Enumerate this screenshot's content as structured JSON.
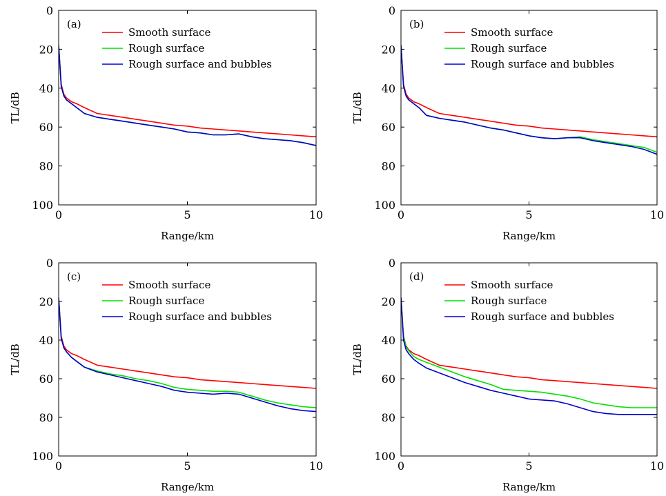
{
  "chart_data": [
    {
      "type": "line",
      "panel_label": "(a)",
      "xlabel": "Range/km",
      "ylabel": "TL/dB",
      "xlim": [
        0,
        10
      ],
      "ylim": [
        0,
        100
      ],
      "y_inverted": true,
      "xticks": [
        "0",
        "5",
        "10"
      ],
      "yticks": [
        "0",
        "20",
        "40",
        "60",
        "80",
        "100"
      ],
      "legend_position": "top-right",
      "x": [
        0,
        0.1,
        0.2,
        0.3,
        0.4,
        0.5,
        0.7,
        1.0,
        1.5,
        2.0,
        2.5,
        3.0,
        3.5,
        4.0,
        4.5,
        5.0,
        5.5,
        6.0,
        6.5,
        7.0,
        7.5,
        8.0,
        8.5,
        9.0,
        9.5,
        10.0
      ],
      "series": [
        {
          "name": "Smooth surface",
          "color": "#ff0000",
          "values": [
            18,
            38,
            43,
            45,
            46,
            47,
            48,
            50,
            53,
            54,
            55,
            56,
            57,
            58,
            59,
            59.5,
            60.5,
            61,
            61.5,
            62,
            62.5,
            63,
            63.5,
            64,
            64.5,
            65
          ]
        },
        {
          "name": "Rough surface",
          "color": "#00e000",
          "values": [
            18,
            39,
            44,
            46,
            47,
            48,
            50,
            53,
            55,
            56,
            57,
            58,
            59,
            60,
            61,
            62.5,
            63,
            64,
            64,
            63.5,
            65,
            66,
            66.5,
            67,
            68,
            69.5
          ]
        },
        {
          "name": "Rough surface and bubbles",
          "color": "#0000d0",
          "values": [
            18,
            39,
            44,
            46,
            47,
            48,
            50,
            53,
            55,
            56,
            57,
            58,
            59,
            60,
            61,
            62.5,
            63,
            64,
            64,
            63.5,
            65,
            66,
            66.5,
            67,
            68,
            69.5
          ]
        }
      ]
    },
    {
      "type": "line",
      "panel_label": "(b)",
      "xlabel": "Range/km",
      "ylabel": "TL/dB",
      "xlim": [
        0,
        10
      ],
      "ylim": [
        0,
        100
      ],
      "y_inverted": true,
      "xticks": [
        "0",
        "5",
        "10"
      ],
      "yticks": [
        "0",
        "20",
        "40",
        "60",
        "80",
        "100"
      ],
      "legend_position": "top-right",
      "x": [
        0,
        0.1,
        0.2,
        0.3,
        0.4,
        0.5,
        0.7,
        1.0,
        1.5,
        2.0,
        2.5,
        3.0,
        3.5,
        4.0,
        4.5,
        5.0,
        5.5,
        6.0,
        6.5,
        7.0,
        7.5,
        8.0,
        8.5,
        9.0,
        9.5,
        10.0
      ],
      "series": [
        {
          "name": "Smooth surface",
          "color": "#ff0000",
          "values": [
            18,
            38,
            43,
            45,
            46,
            47,
            48,
            50,
            53,
            54,
            55,
            56,
            57,
            58,
            59,
            59.5,
            60.5,
            61,
            61.5,
            62,
            62.5,
            63,
            63.5,
            64,
            64.5,
            65
          ]
        },
        {
          "name": "Rough surface",
          "color": "#00e000",
          "values": [
            18,
            39,
            44,
            46,
            47,
            48,
            50,
            54,
            55.5,
            56.5,
            57.5,
            59,
            60.5,
            61.5,
            63,
            64.5,
            65.5,
            66,
            65.5,
            65,
            66.5,
            67.5,
            68.5,
            69.5,
            70.5,
            73
          ]
        },
        {
          "name": "Rough surface and bubbles",
          "color": "#0000d0",
          "values": [
            18,
            39,
            44,
            46,
            47,
            48,
            50,
            54,
            55.5,
            56.5,
            57.5,
            59,
            60.5,
            61.5,
            63,
            64.5,
            65.5,
            66,
            65.5,
            65.5,
            67,
            68,
            69,
            70,
            71.5,
            74
          ]
        }
      ]
    },
    {
      "type": "line",
      "panel_label": "(c)",
      "xlabel": "Range/km",
      "ylabel": "TL/dB",
      "xlim": [
        0,
        10
      ],
      "ylim": [
        0,
        100
      ],
      "y_inverted": true,
      "xticks": [
        "0",
        "5",
        "10"
      ],
      "yticks": [
        "0",
        "20",
        "40",
        "60",
        "80",
        "100"
      ],
      "legend_position": "top-right",
      "x": [
        0,
        0.1,
        0.2,
        0.3,
        0.4,
        0.5,
        0.7,
        1.0,
        1.5,
        2.0,
        2.5,
        3.0,
        3.5,
        4.0,
        4.5,
        5.0,
        5.5,
        6.0,
        6.5,
        7.0,
        7.5,
        8.0,
        8.5,
        9.0,
        9.5,
        10.0
      ],
      "series": [
        {
          "name": "Smooth surface",
          "color": "#ff0000",
          "values": [
            18,
            38,
            43,
            45,
            46,
            47,
            48,
            50,
            53,
            54,
            55,
            56,
            57,
            58,
            59,
            59.5,
            60.5,
            61,
            61.5,
            62,
            62.5,
            63,
            63.5,
            64,
            64.5,
            65
          ]
        },
        {
          "name": "Rough surface",
          "color": "#00e000",
          "values": [
            18,
            39,
            44,
            46,
            47.5,
            49,
            51,
            54,
            56,
            57.5,
            58.5,
            60,
            61,
            62.5,
            64.5,
            65.5,
            66,
            66.5,
            66.5,
            67,
            69,
            71,
            72.5,
            73.5,
            74.5,
            75
          ]
        },
        {
          "name": "Rough surface and bubbles",
          "color": "#0000d0",
          "values": [
            18,
            39,
            44,
            46,
            47.5,
            49,
            51,
            54,
            56.5,
            58,
            59.5,
            61,
            62.5,
            64,
            66,
            67,
            67.5,
            68,
            67.5,
            68,
            70,
            72,
            74,
            75.5,
            76.5,
            77
          ]
        }
      ]
    },
    {
      "type": "line",
      "panel_label": "(d)",
      "xlabel": "Range/km",
      "ylabel": "TL/dB",
      "xlim": [
        0,
        10
      ],
      "ylim": [
        0,
        100
      ],
      "y_inverted": true,
      "xticks": [
        "0",
        "5",
        "10"
      ],
      "yticks": [
        "0",
        "20",
        "40",
        "60",
        "80",
        "100"
      ],
      "legend_position": "top-right",
      "x": [
        0,
        0.1,
        0.2,
        0.3,
        0.4,
        0.5,
        0.7,
        1.0,
        1.5,
        2.0,
        2.5,
        3.0,
        3.5,
        4.0,
        4.5,
        5.0,
        5.5,
        6.0,
        6.5,
        7.0,
        7.5,
        8.0,
        8.5,
        9.0,
        9.5,
        10.0
      ],
      "series": [
        {
          "name": "Smooth surface",
          "color": "#ff0000",
          "values": [
            18,
            38,
            43,
            45,
            46,
            47,
            48,
            50,
            53,
            54,
            55,
            56,
            57,
            58,
            59,
            59.5,
            60.5,
            61,
            61.5,
            62,
            62.5,
            63,
            63.5,
            64,
            64.5,
            65
          ]
        },
        {
          "name": "Rough surface",
          "color": "#00e000",
          "values": [
            18,
            38,
            43.5,
            45.5,
            47,
            48.5,
            50,
            51.5,
            54,
            56.5,
            59,
            61,
            63,
            65.5,
            66,
            66.5,
            67,
            68,
            69,
            70.5,
            72.5,
            73.5,
            74.5,
            75,
            75,
            75
          ]
        },
        {
          "name": "Rough surface and bubbles",
          "color": "#0000d0",
          "values": [
            18,
            40,
            45,
            47,
            48.5,
            50,
            52,
            54.5,
            57,
            59.5,
            62,
            64,
            66,
            67.5,
            69,
            70.5,
            71,
            71.5,
            73,
            75,
            77,
            78,
            78.5,
            78.5,
            78.5,
            78.5
          ]
        }
      ]
    }
  ]
}
